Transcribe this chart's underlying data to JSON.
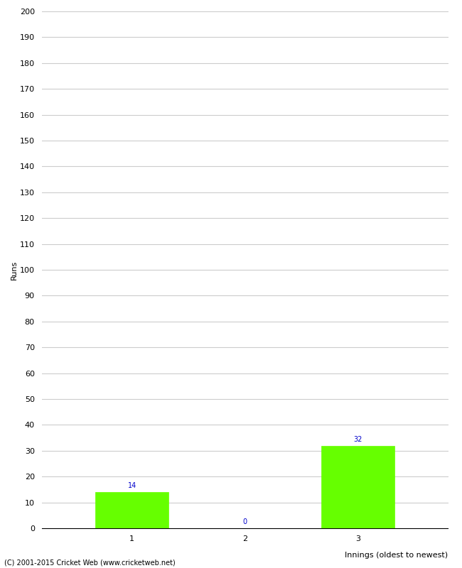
{
  "categories": [
    1,
    2,
    3
  ],
  "values": [
    14,
    0,
    32
  ],
  "bar_color": "#66ff00",
  "bar_edge_color": "#66ff00",
  "ylabel": "Runs",
  "xlabel": "Innings (oldest to newest)",
  "ylim": [
    0,
    200
  ],
  "yticks": [
    0,
    10,
    20,
    30,
    40,
    50,
    60,
    70,
    80,
    90,
    100,
    110,
    120,
    130,
    140,
    150,
    160,
    170,
    180,
    190,
    200
  ],
  "xticks": [
    1,
    2,
    3
  ],
  "value_label_color": "#0000cc",
  "value_label_fontsize": 7,
  "axis_label_fontsize": 8,
  "tick_fontsize": 8,
  "footer": "(C) 2001-2015 Cricket Web (www.cricketweb.net)",
  "footer_fontsize": 7,
  "background_color": "#ffffff",
  "grid_color": "#cccccc",
  "bar_width": 0.65
}
